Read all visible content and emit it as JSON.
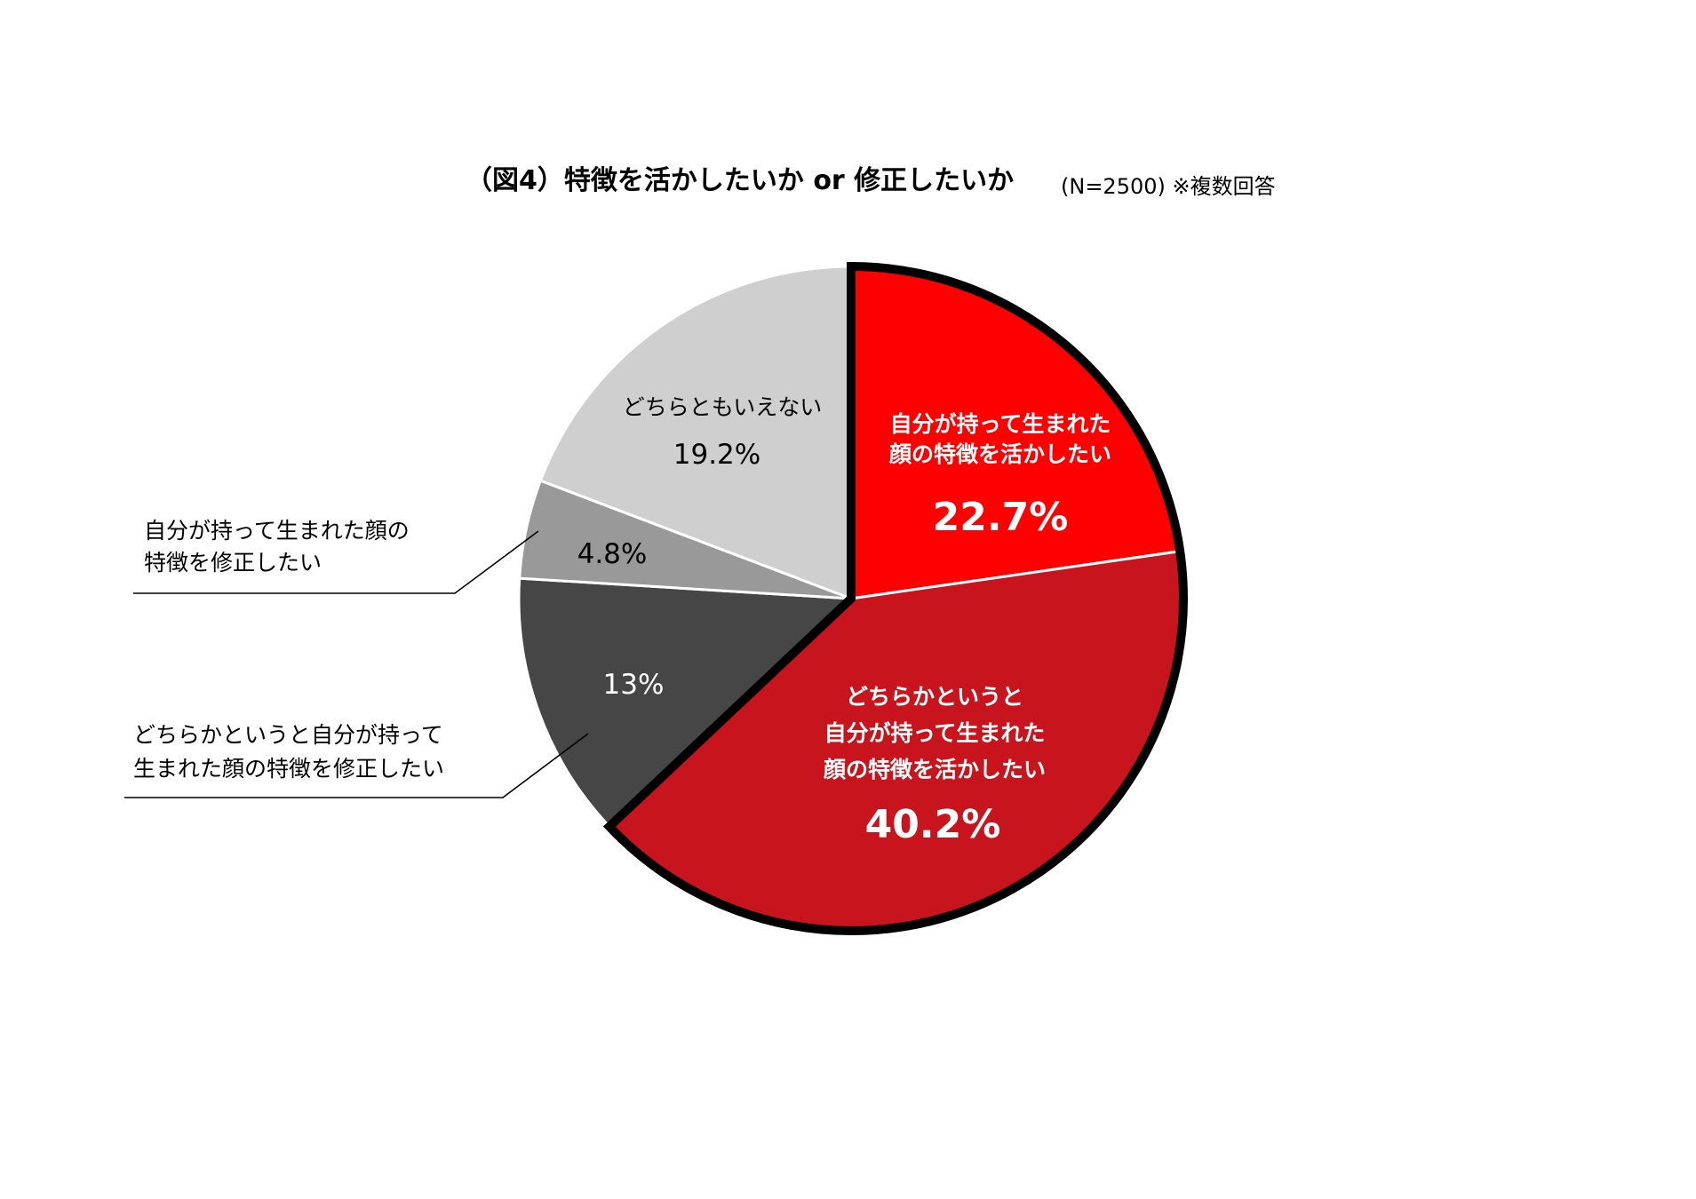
{
  "title": {
    "main": "（図4）特徴を活かしたいか or 修正したいか",
    "sub": "(N=2500) ※複数回答"
  },
  "chart_data": {
    "type": "pie",
    "start_angle_deg": 0,
    "direction": "clockwise",
    "slices": [
      {
        "label_lines": [
          "自分が持って生まれた",
          "顔の特徴を活かしたい"
        ],
        "value": 22.7,
        "value_label": "22.7%",
        "color": "#ff0000",
        "highlighted": true
      },
      {
        "label_lines": [
          "どちらかというと",
          "自分が持って生まれた",
          "顔の特徴を活かしたい"
        ],
        "value": 40.2,
        "value_label": "40.2%",
        "color": "#c8151d",
        "highlighted": true
      },
      {
        "label_lines": [
          "どちらかというと自分が持って",
          "生まれた顔の特徴を修正したい"
        ],
        "value": 13,
        "value_label": "13%",
        "color": "#464646",
        "highlighted": false
      },
      {
        "label_lines": [
          "自分が持って生まれた顔の",
          "特徴を修正したい"
        ],
        "value": 4.8,
        "value_label": "4.8%",
        "color": "#999999",
        "highlighted": false
      },
      {
        "label_lines": [
          "どちらともいえない"
        ],
        "value": 19.2,
        "value_label": "19.2%",
        "color": "#d0cfd0",
        "highlighted": false
      }
    ]
  }
}
